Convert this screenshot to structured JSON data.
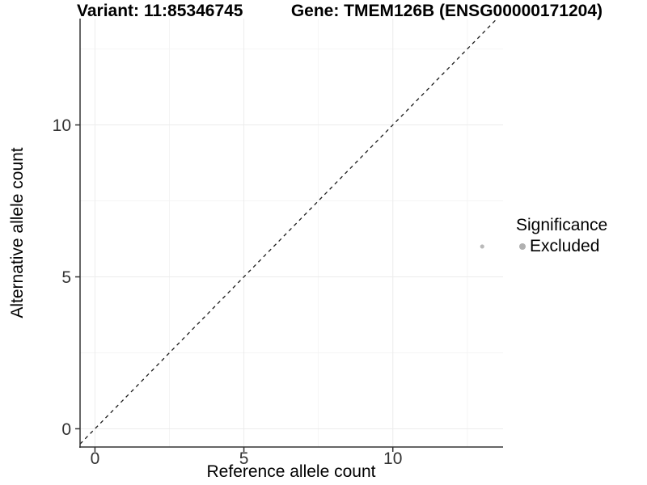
{
  "chart_data": {
    "type": "scatter",
    "title_left": "Variant: 11:85346745",
    "title_right": "Gene: TMEM126B (ENSG00000171204)",
    "xlabel": "Reference allele count",
    "ylabel": "Alternative allele count",
    "xlim": [
      -0.5,
      13.7
    ],
    "ylim": [
      -0.6,
      13.5
    ],
    "x_major_ticks": [
      0,
      5,
      10
    ],
    "y_major_ticks": [
      0,
      5,
      10
    ],
    "x_minor_ticks": [
      2.5,
      7.5,
      12.5
    ],
    "y_minor_ticks": [
      2.5,
      7.5,
      12.5
    ],
    "grid": "major+minor",
    "abline": {
      "slope": 1,
      "intercept": 0,
      "style": "dashed"
    },
    "series": [
      {
        "name": "Excluded",
        "color": "#b9b9b9",
        "points": [
          [
            13,
            6
          ]
        ],
        "point_radius": 2.6
      }
    ],
    "legend": {
      "title": "Significance",
      "position": "right",
      "entries": [
        {
          "label": "Excluded",
          "color": "#b0b0b0"
        }
      ]
    },
    "style": {
      "axis_color": "#333333",
      "tick_label_color": "#333333",
      "grid_major_color": "#ececec",
      "grid_minor_color": "#f4f4f4",
      "abline_color": "#1a1a1a",
      "background": "#ffffff"
    }
  }
}
